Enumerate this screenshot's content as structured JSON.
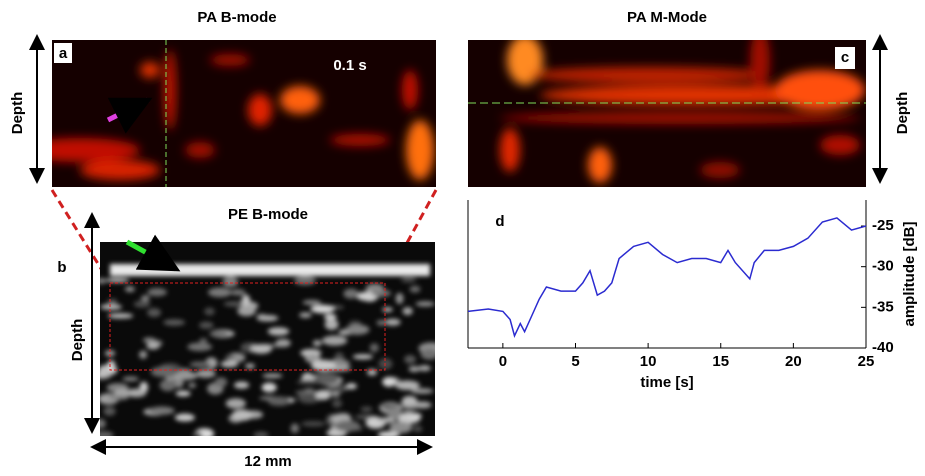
{
  "panels": {
    "a": {
      "title": "PA B-mode",
      "label": "a",
      "scale": "0.1 s",
      "axis": "Depth"
    },
    "b": {
      "title": "PE B-mode",
      "label": "b",
      "axis": "Depth",
      "width": "12 mm"
    },
    "c": {
      "title": "PA M-Mode",
      "label": "c",
      "axis": "Depth"
    }
  },
  "chart_data": {
    "type": "line",
    "label": "d",
    "xlabel": "time [s]",
    "ylabel": "amplitude [dB]",
    "x": [
      -2.4,
      -1,
      0,
      0.5,
      0.8,
      1.2,
      1.5,
      2,
      2.5,
      3,
      4,
      5,
      5.5,
      6,
      6.5,
      7,
      7.5,
      8,
      9,
      10,
      11,
      12,
      13,
      14,
      15,
      15.5,
      16,
      17,
      17.3,
      18,
      19,
      20,
      21,
      22,
      23,
      24,
      25
    ],
    "series": [
      {
        "color": "#2b2bd0",
        "values": [
          -35.5,
          -35.2,
          -35.5,
          -36.5,
          -38.5,
          -37,
          -38,
          -36,
          -34,
          -32.5,
          -33,
          -33,
          -32,
          -30.5,
          -33.5,
          -33,
          -32,
          -29,
          -27.5,
          -27,
          -28.5,
          -29.5,
          -29,
          -29,
          -29.5,
          -28,
          -29.5,
          -31.5,
          -29.5,
          -28,
          -28,
          -27.5,
          -26.5,
          -24.5,
          -24,
          -25.5,
          -25
        ]
      }
    ],
    "xlim": [
      -2.4,
      25
    ],
    "ylim": [
      -40,
      -21.8
    ],
    "xticks": [
      0,
      5,
      10,
      15,
      20,
      25
    ],
    "yticks": [
      -40,
      -35,
      -30,
      -25
    ]
  }
}
